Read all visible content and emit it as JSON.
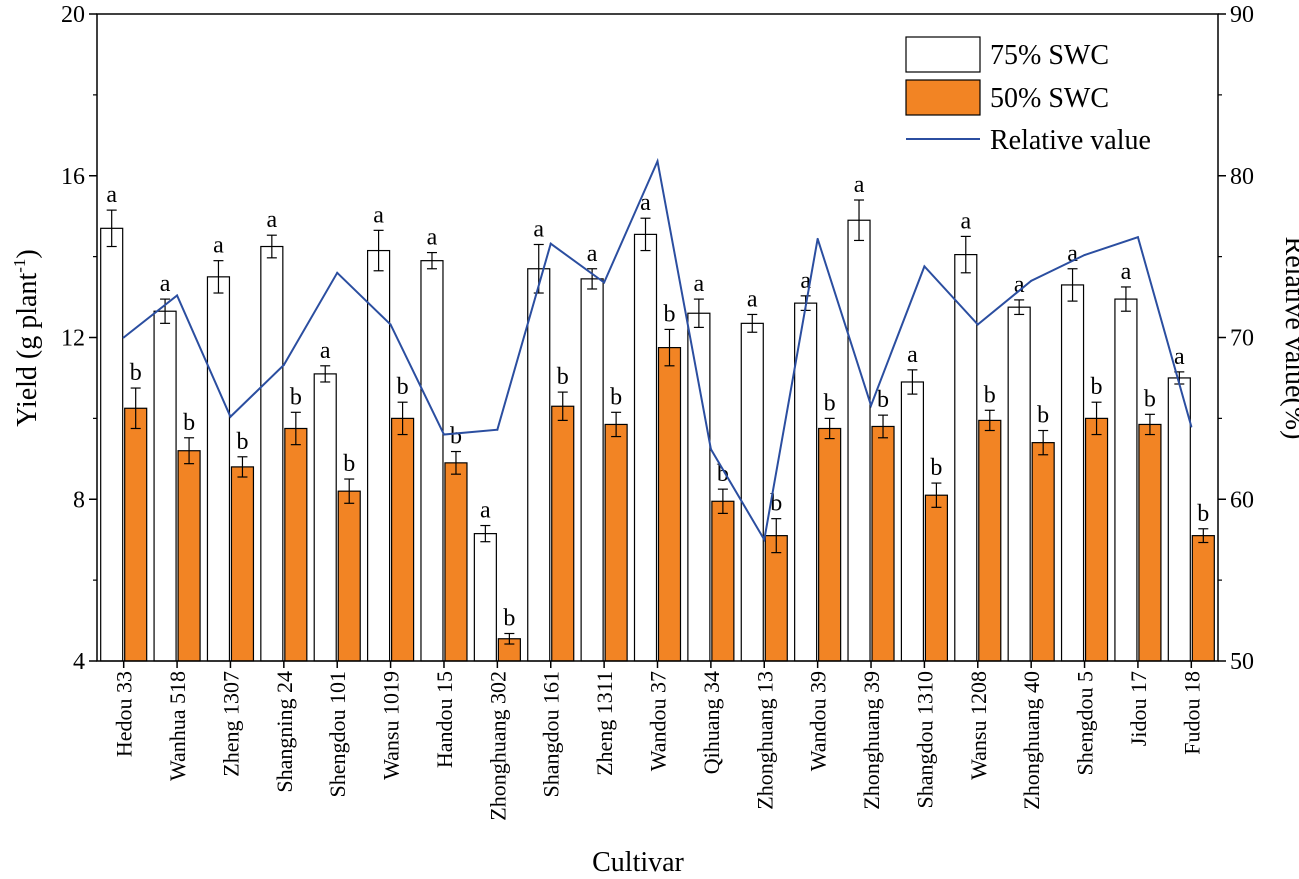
{
  "chart_data": {
    "type": "bar",
    "xlabel": "Cultivar",
    "ylabel": "Yield (g plant",
    "ylabel_sup": "-1",
    "ylabel_close": ")",
    "y2label": "Relative value(%)",
    "ylim": [
      4,
      20
    ],
    "y2lim": [
      50,
      90
    ],
    "yticks": [
      "4",
      "8",
      "12",
      "16",
      "20"
    ],
    "y2ticks": [
      "50",
      "60",
      "70",
      "80",
      "90"
    ],
    "colors": {
      "swc75": "#ffffff",
      "swc50": "#f28424",
      "line": "#2b4ea0",
      "axis": "#000000"
    },
    "categories": [
      "Hedou 33",
      "Wanhua 518",
      "Zheng 1307",
      "Shangning 24",
      "Shengdou 101",
      "Wansu 1019",
      "Handou 15",
      "Zhonghuang 302",
      "Shangdou 161",
      "Zheng 1311",
      "Wandou 37",
      "Qihuang 34",
      "Zhonghuang 13",
      "Wandou 39",
      "Zhonghuang 39",
      "Shangdou 1310",
      "Wansu 1208",
      "Zhonghuang 40",
      "Shengdou 5",
      "Jidou 17",
      "Fudou 18"
    ],
    "series": [
      {
        "name": "75% SWC",
        "values": [
          14.7,
          12.65,
          13.5,
          14.25,
          11.1,
          14.15,
          13.9,
          7.15,
          13.7,
          13.45,
          14.55,
          12.6,
          12.35,
          12.85,
          14.9,
          10.9,
          14.05,
          12.75,
          13.3,
          12.95,
          11.0
        ],
        "errors": [
          0.45,
          0.3,
          0.4,
          0.28,
          0.2,
          0.5,
          0.2,
          0.2,
          0.6,
          0.25,
          0.4,
          0.35,
          0.22,
          0.18,
          0.5,
          0.3,
          0.45,
          0.18,
          0.4,
          0.3,
          0.15
        ],
        "letters": [
          "a",
          "a",
          "a",
          "a",
          "a",
          "a",
          "a",
          "a",
          "a",
          "a",
          "a",
          "a",
          "a",
          "a",
          "a",
          "a",
          "a",
          "a",
          "a",
          "a",
          "a"
        ]
      },
      {
        "name": "50% SWC",
        "values": [
          10.25,
          9.2,
          8.8,
          9.75,
          8.2,
          10.0,
          8.9,
          4.55,
          10.3,
          9.85,
          11.75,
          7.95,
          7.1,
          9.75,
          9.8,
          8.1,
          9.95,
          9.4,
          10.0,
          9.85,
          7.1
        ],
        "errors": [
          0.5,
          0.32,
          0.25,
          0.4,
          0.3,
          0.4,
          0.28,
          0.13,
          0.35,
          0.3,
          0.45,
          0.3,
          0.42,
          0.25,
          0.28,
          0.3,
          0.25,
          0.3,
          0.4,
          0.25,
          0.17
        ],
        "letters": [
          "b",
          "b",
          "b",
          "b",
          "b",
          "b",
          "b",
          "b",
          "b",
          "b",
          "b",
          "b",
          "b",
          "b",
          "b",
          "b",
          "b",
          "b",
          "b",
          "b",
          "b"
        ]
      }
    ],
    "line": {
      "name": "Relative value",
      "values": [
        70.0,
        72.6,
        65.1,
        68.3,
        74.0,
        70.8,
        64.0,
        64.3,
        75.8,
        73.4,
        80.9,
        63.1,
        57.5,
        76.1,
        65.8,
        74.4,
        70.8,
        73.5,
        75.1,
        76.2,
        64.5
      ]
    },
    "legend": {
      "position": "top-right",
      "entries": [
        "75% SWC",
        "50% SWC",
        "Relative value"
      ]
    }
  }
}
